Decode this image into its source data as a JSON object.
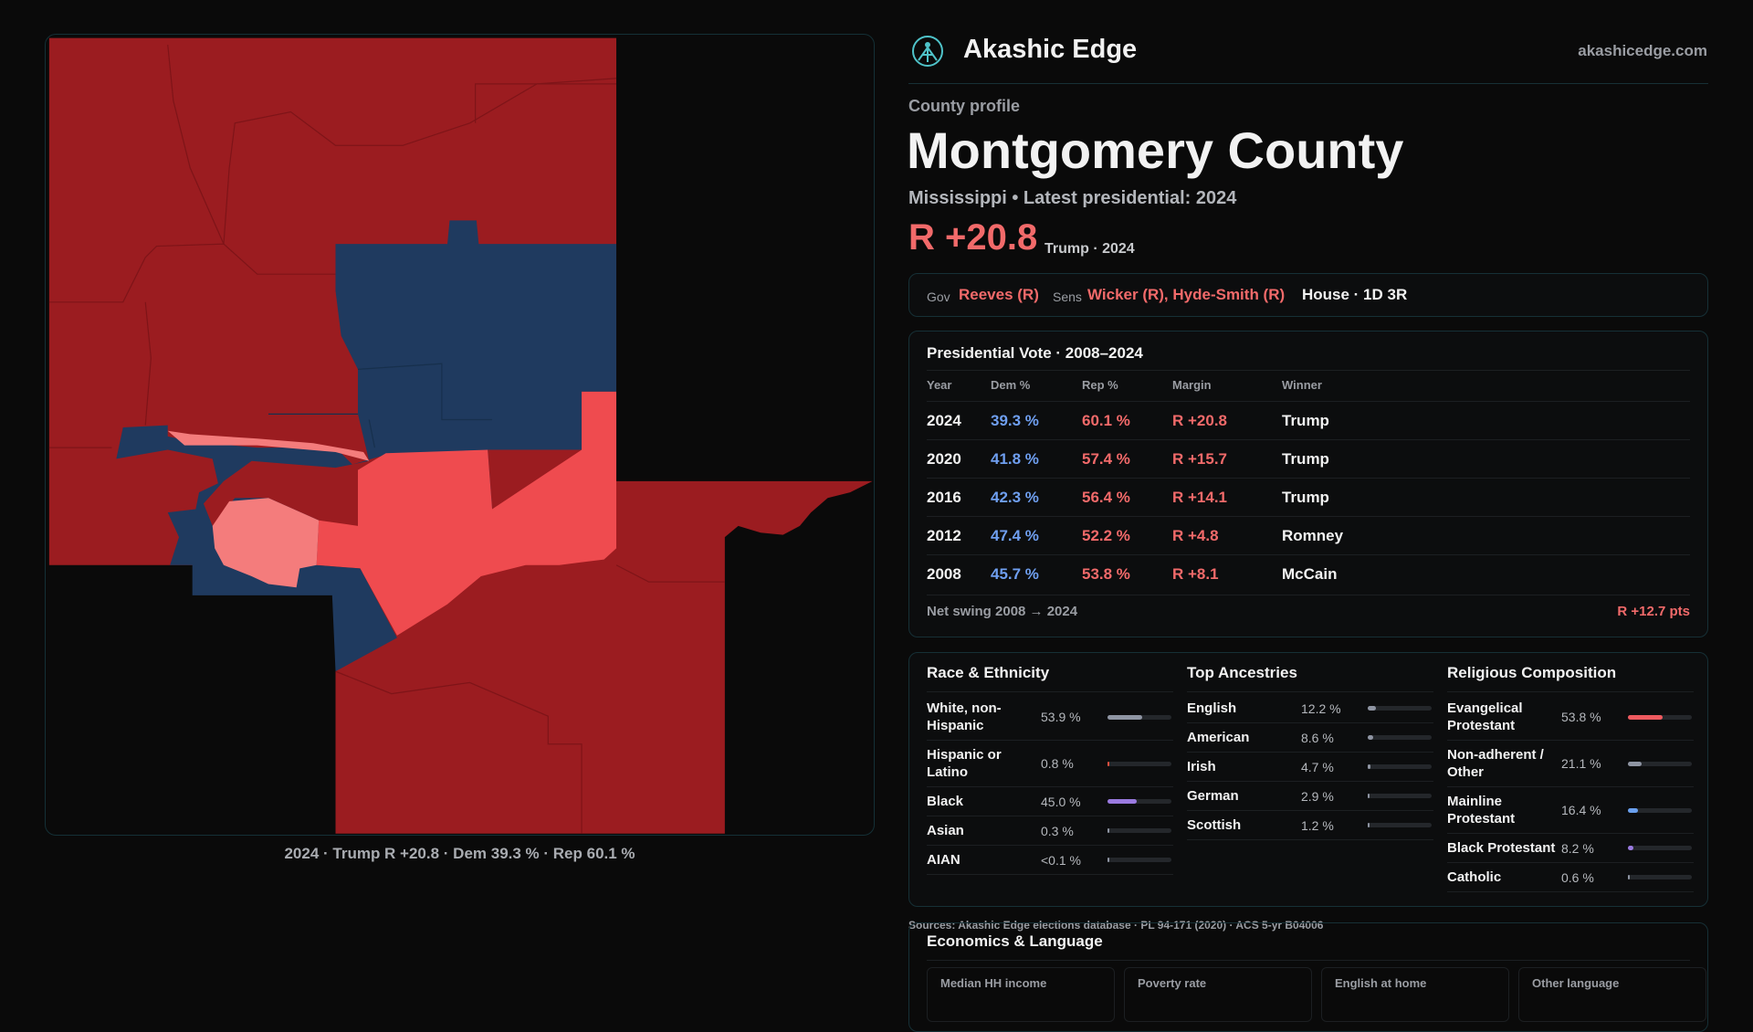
{
  "header": {
    "brand": "Akashic Edge",
    "site": "akashicedge.com"
  },
  "profile": {
    "eyebrow": "County profile",
    "name": "Montgomery County",
    "subtitle": "Mississippi • Latest presidential: 2024",
    "margin": "R +20.8",
    "margin_note": "Trump · 2024"
  },
  "officials": {
    "gov_label": "Gov",
    "gov": "Reeves (R)",
    "sens_label": "Sens",
    "sens": "Wicker (R), Hyde-Smith (R)",
    "house": "House · 1D 3R"
  },
  "presidential": {
    "title": "Presidential Vote · 2008–2024",
    "headers": [
      "Year",
      "Dem %",
      "Rep %",
      "Margin",
      "Winner"
    ],
    "rows": [
      [
        "2024",
        "39.3 %",
        "60.1 %",
        "R +20.8",
        "Trump"
      ],
      [
        "2020",
        "41.8 %",
        "57.4 %",
        "R +15.7",
        "Trump"
      ],
      [
        "2016",
        "42.3 %",
        "56.4 %",
        "R +14.1",
        "Trump"
      ],
      [
        "2012",
        "47.4 %",
        "52.2 %",
        "R +4.8",
        "Romney"
      ],
      [
        "2008",
        "45.7 %",
        "53.8 %",
        "R +8.1",
        "McCain"
      ]
    ],
    "swing_label": "Net swing 2008 → 2024",
    "swing_value": "R +12.7 pts"
  },
  "demographics": [
    {
      "title": "Race & Ethnicity",
      "rows": [
        {
          "label": "White, non-Hispanic",
          "value": "53.9 %",
          "color": "#8f95a3"
        },
        {
          "label": "Hispanic or Latino",
          "value": "0.8 %",
          "color": "#e0503f"
        },
        {
          "label": "Black",
          "value": "45.0 %",
          "color": "#9a7ae0"
        },
        {
          "label": "Asian",
          "value": "0.3 %",
          "color": "#8f95a3"
        },
        {
          "label": "AIAN",
          "value": "<0.1 %",
          "color": "#8f95a3"
        }
      ]
    },
    {
      "title": "Top Ancestries",
      "rows": [
        {
          "label": "English",
          "value": "12.2 %",
          "color": "#8f95a3"
        },
        {
          "label": "American",
          "value": "8.6 %",
          "color": "#8f95a3"
        },
        {
          "label": "Irish",
          "value": "4.7 %",
          "color": "#8f95a3"
        },
        {
          "label": "German",
          "value": "2.9 %",
          "color": "#8f95a3"
        },
        {
          "label": "Scottish",
          "value": "1.2 %",
          "color": "#8f95a3"
        }
      ]
    },
    {
      "title": "Religious Composition",
      "rows": [
        {
          "label": "Evangelical Protestant",
          "value": "53.8 %",
          "color": "#ef5a5f"
        },
        {
          "label": "Non-adherent / Other",
          "value": "21.1 %",
          "color": "#8f95a3"
        },
        {
          "label": "Mainline Protestant",
          "value": "16.4 %",
          "color": "#6aa0ef"
        },
        {
          "label": "Black Protestant",
          "value": "8.2 %",
          "color": "#9a7ae0"
        },
        {
          "label": "Catholic",
          "value": "0.6 %",
          "color": "#8f95a3"
        }
      ]
    }
  ],
  "sources": "Sources: Akashic Edge elections database · PL 94-171 (2020) · ACS 5-yr B04006",
  "economics": {
    "title": "Economics & Language",
    "headers": [
      "Median HH income",
      "Poverty rate",
      "English at home",
      "Other language"
    ]
  },
  "map": {
    "caption": "2024 · Trump R +20.8 · Dem 39.3 % · Rep 60.1 %"
  }
}
